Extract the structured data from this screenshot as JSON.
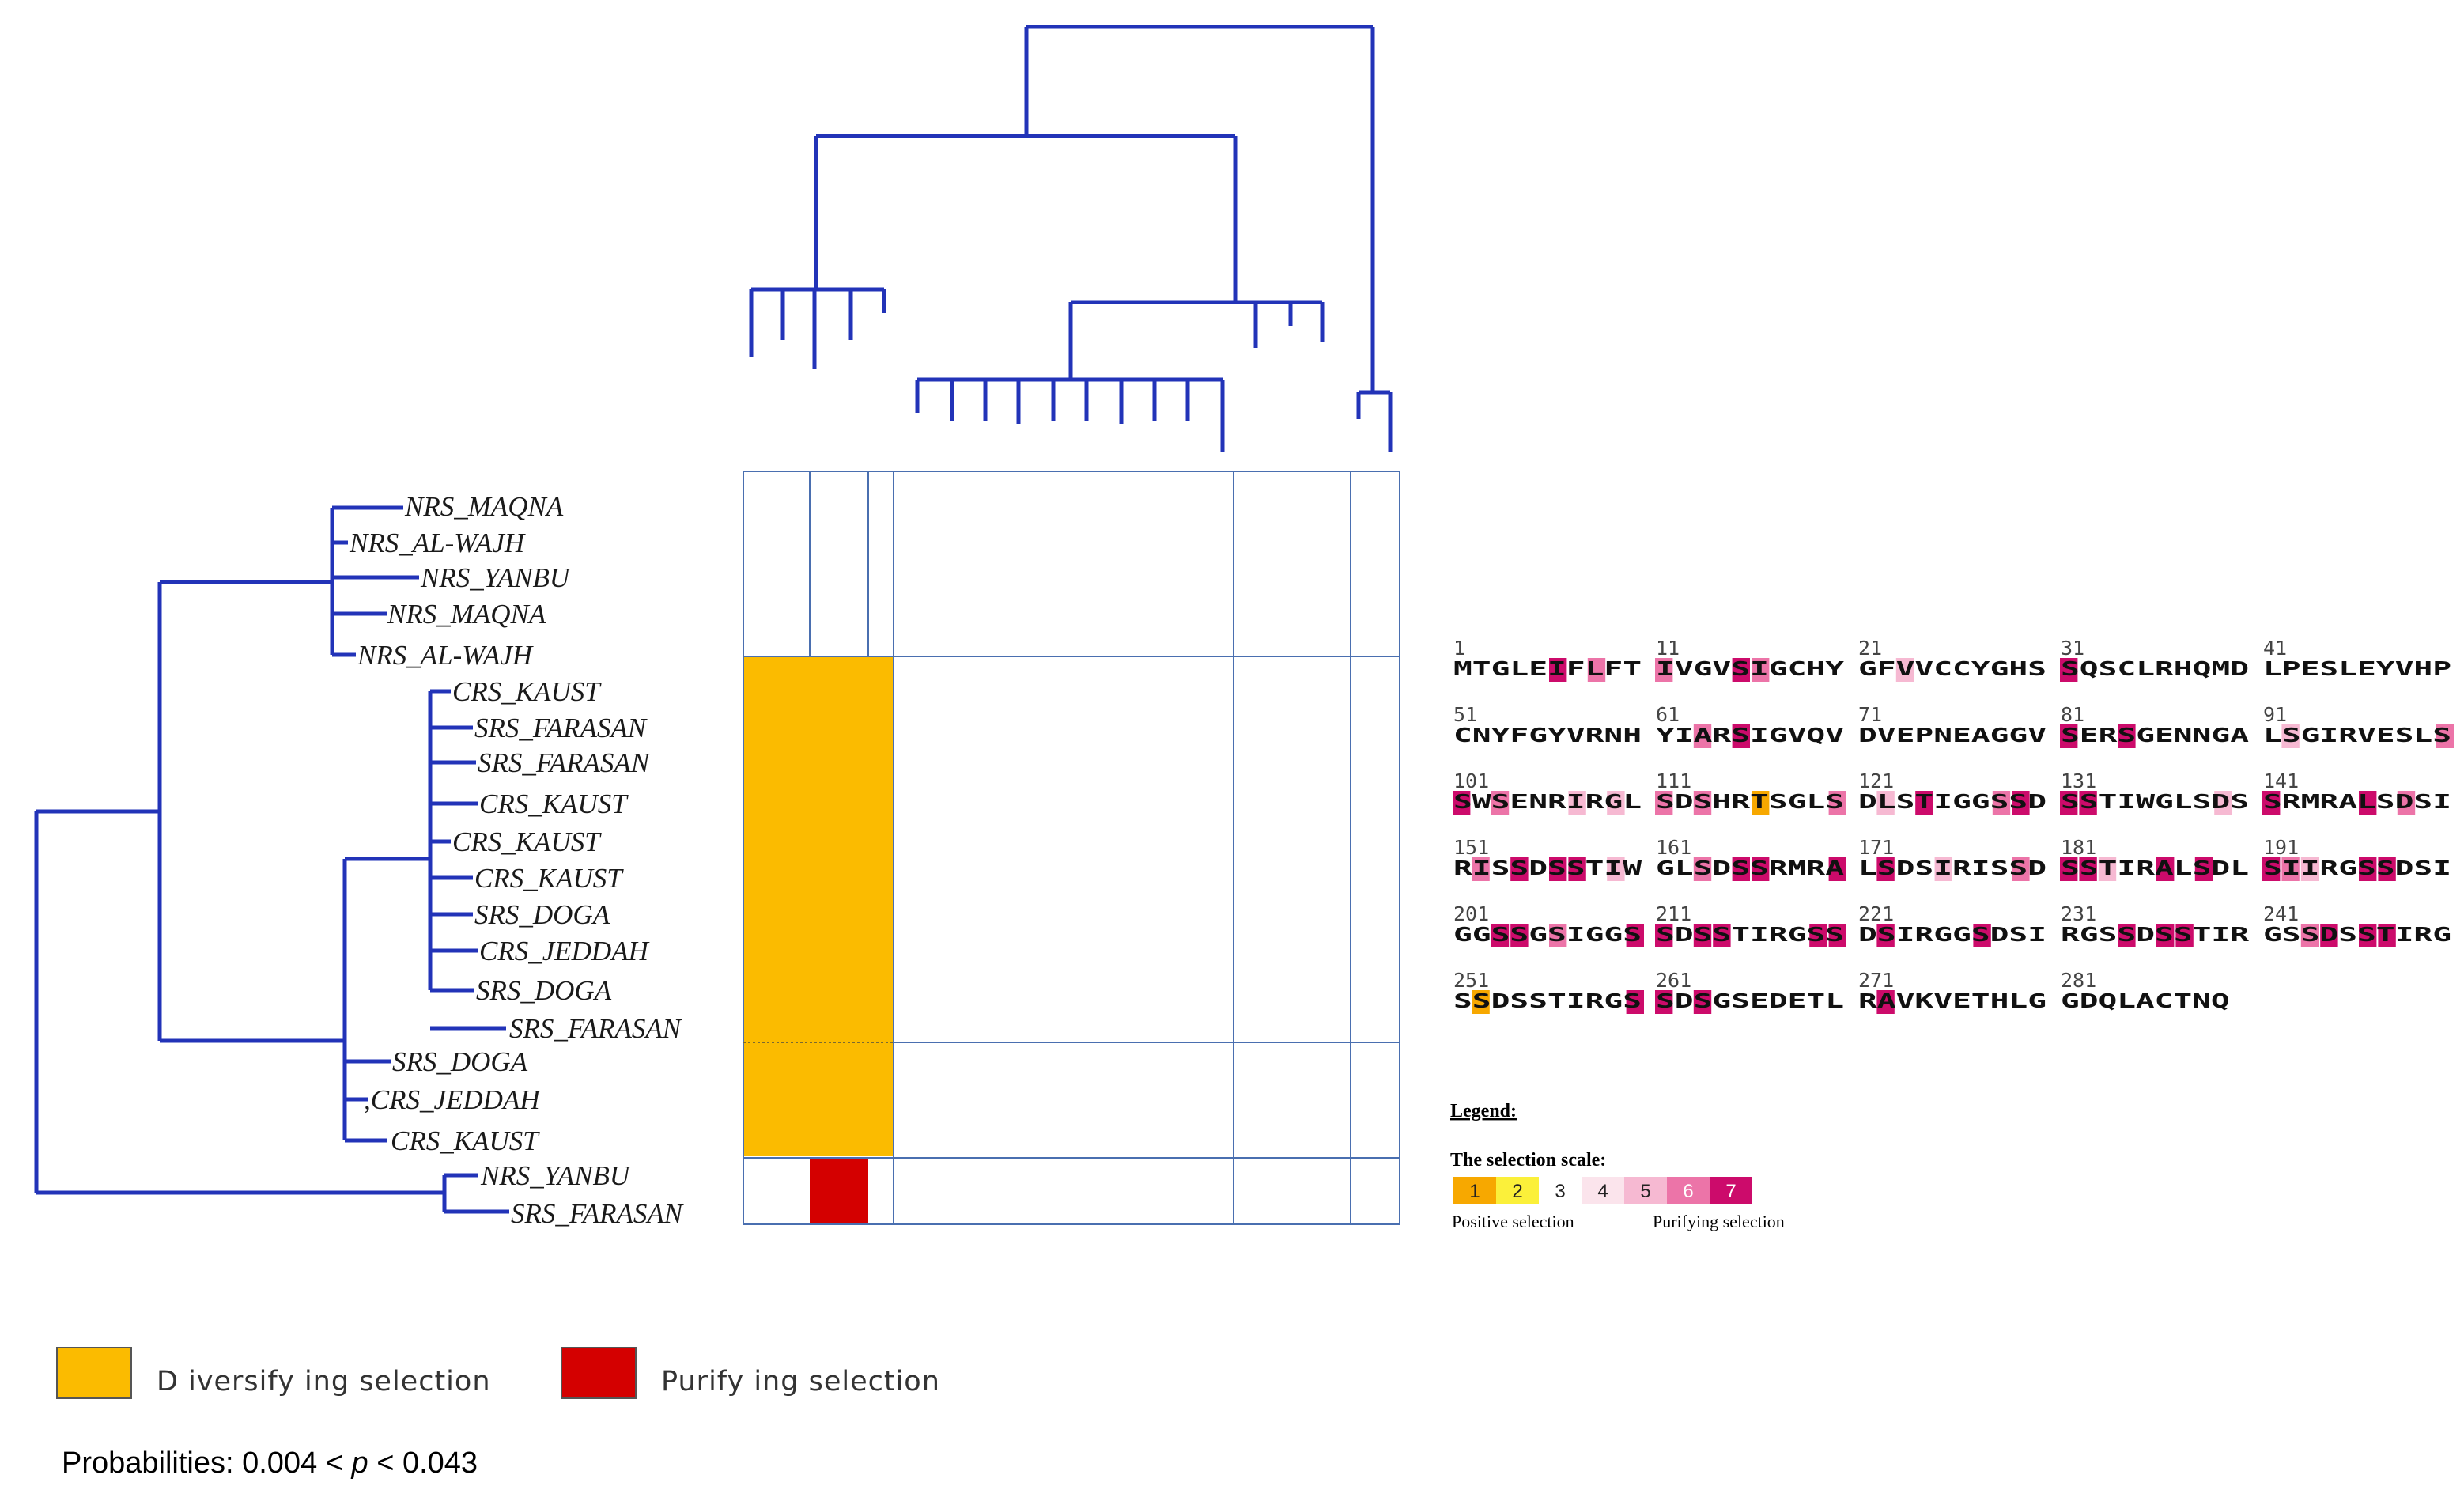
{
  "colors": {
    "tree": "#2233b8",
    "grid": "#4a6fb0",
    "diversifying": "#fbbb00",
    "purifying": "#d40000",
    "scale": [
      "#f7a800",
      "#fbf03a",
      "#ffffff",
      "#fbe4ec",
      "#f6b9d2",
      "#ec74a8",
      "#cc0b6b"
    ]
  },
  "tree_left": {
    "taxa": [
      "NRS_MAQNA",
      "NRS_AL-WAJH",
      "NRS_YANBU",
      "NRS_MAQNA",
      "NRS_AL-WAJH",
      "CRS_KAUST",
      "SRS_FARASAN",
      "SRS_FARASAN",
      "CRS_KAUST",
      "CRS_KAUST",
      "CRS_KAUST",
      "SRS_DOGA",
      "CRS_JEDDAH",
      "SRS_DOGA",
      "SRS_FARASAN",
      "SRS_DOGA",
      ",CRS_JEDDAH",
      "CRS_KAUST",
      "NRS_YANBU",
      "SRS_FARASAN"
    ]
  },
  "matrix": {
    "cells": [
      {
        "state": "diversifying",
        "label": "Diversifying selection block"
      },
      {
        "state": "purifying",
        "label": "Purifying selection block"
      }
    ]
  },
  "sequence": {
    "rows": [
      {
        "start": 1,
        "blocks": [
          "MTGLEIFLFT",
          "IVGVSIGCHY",
          "GFVVCCYGHS",
          "SQSCLRHQMD",
          "LPESLEYVHP"
        ]
      },
      {
        "start": 51,
        "blocks": [
          "CNYFGYVRNH",
          "YIARSIGVQV",
          "DVEPNEAGGV",
          "SERSGENNGA",
          "LSGIRVESLS"
        ]
      },
      {
        "start": 101,
        "blocks": [
          "SWSENRIRGL",
          "SDSHRTSGLS",
          "DLSTIGGSSD",
          "SSTIWGLSDS",
          "SRMRALSDSI"
        ]
      },
      {
        "start": 151,
        "blocks": [
          "RISSDSSTIW",
          "GLSDSSRMRA",
          "LSDSIRISSD",
          "SSTIRALSDL",
          "SIIRGSSDSI"
        ]
      },
      {
        "start": 201,
        "blocks": [
          "GGSSGSIGGS",
          "SDSSTIRGSS",
          "DSIRGGSDSI",
          "RGSSDSSTIR",
          "GSSDSSTIRG"
        ]
      },
      {
        "start": 251,
        "blocks": [
          "SSDSSTIRGS",
          "SDSGSEDETL",
          "RAVKVETHLG",
          "GDQLACTNQ"
        ]
      }
    ],
    "numbers": [
      [
        "1",
        "11",
        "21",
        "31",
        "41"
      ],
      [
        "51",
        "61",
        "71",
        "81",
        "91"
      ],
      [
        "101",
        "111",
        "121",
        "131",
        "141"
      ],
      [
        "151",
        "161",
        "171",
        "181",
        "191"
      ],
      [
        "201",
        "211",
        "221",
        "231",
        "241"
      ],
      [
        "251",
        "261",
        "271",
        "281"
      ]
    ],
    "highlights": [
      [
        [
          [
            5,
            7
          ],
          [
            7,
            6
          ]
        ],
        [
          [
            0,
            6
          ],
          [
            4,
            7
          ],
          [
            5,
            6
          ]
        ],
        [
          [
            2,
            5
          ]
        ],
        [
          [
            0,
            7
          ]
        ],
        []
      ],
      [
        [],
        [
          [
            2,
            6
          ],
          [
            4,
            7
          ]
        ],
        [],
        [
          [
            0,
            7
          ],
          [
            3,
            7
          ]
        ],
        [
          [
            1,
            5
          ],
          [
            9,
            6
          ]
        ]
      ],
      [
        [
          [
            0,
            7
          ],
          [
            2,
            6
          ],
          [
            6,
            5
          ],
          [
            8,
            5
          ]
        ],
        [
          [
            0,
            6
          ],
          [
            2,
            6
          ],
          [
            5,
            1
          ],
          [
            9,
            6
          ]
        ],
        [
          [
            1,
            5
          ],
          [
            3,
            7
          ],
          [
            7,
            6
          ],
          [
            8,
            7
          ]
        ],
        [
          [
            0,
            7
          ],
          [
            1,
            7
          ],
          [
            8,
            5
          ]
        ],
        [
          [
            0,
            7
          ],
          [
            5,
            7
          ],
          [
            7,
            6
          ]
        ]
      ],
      [
        [
          [
            1,
            6
          ],
          [
            3,
            7
          ],
          [
            5,
            7
          ],
          [
            6,
            7
          ],
          [
            8,
            5
          ]
        ],
        [
          [
            2,
            6
          ],
          [
            4,
            7
          ],
          [
            5,
            7
          ],
          [
            9,
            7
          ]
        ],
        [
          [
            1,
            7
          ],
          [
            4,
            5
          ],
          [
            8,
            6
          ]
        ],
        [
          [
            0,
            7
          ],
          [
            1,
            7
          ],
          [
            2,
            5
          ],
          [
            5,
            7
          ],
          [
            7,
            7
          ]
        ],
        [
          [
            0,
            7
          ],
          [
            1,
            6
          ],
          [
            2,
            5
          ],
          [
            5,
            7
          ],
          [
            6,
            7
          ]
        ]
      ],
      [
        [
          [
            2,
            7
          ],
          [
            3,
            7
          ],
          [
            5,
            6
          ],
          [
            9,
            7
          ]
        ],
        [
          [
            0,
            7
          ],
          [
            2,
            7
          ],
          [
            3,
            7
          ],
          [
            8,
            7
          ],
          [
            9,
            7
          ]
        ],
        [
          [
            1,
            7
          ],
          [
            6,
            7
          ]
        ],
        [
          [
            3,
            7
          ],
          [
            5,
            7
          ],
          [
            6,
            7
          ]
        ],
        [
          [
            2,
            6
          ],
          [
            3,
            7
          ],
          [
            5,
            7
          ],
          [
            6,
            7
          ]
        ]
      ],
      [
        [
          [
            1,
            1
          ],
          [
            9,
            7
          ]
        ],
        [
          [
            0,
            7
          ],
          [
            2,
            7
          ]
        ],
        [
          [
            1,
            7
          ]
        ],
        []
      ]
    ]
  },
  "legend": {
    "title": "Legend:",
    "scale_title": "The selection scale:",
    "scale_values": [
      "1",
      "2",
      "3",
      "4",
      "5",
      "6",
      "7"
    ],
    "positive_label": "Positive selection",
    "purifying_label": "Purifying selection"
  },
  "key": {
    "diversifying_label": "D iversify ing  selection",
    "purifying_label": "Purify ing  selection"
  },
  "probabilities": {
    "prefix": "Probabilities: 0.004 < ",
    "symbol": "p",
    "suffix": " < 0.043"
  }
}
